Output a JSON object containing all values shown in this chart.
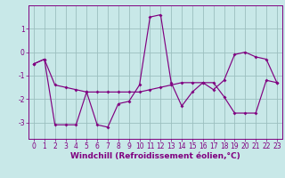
{
  "xlabel": "Windchill (Refroidissement éolien,°C)",
  "x": [
    0,
    1,
    2,
    3,
    4,
    5,
    6,
    7,
    8,
    9,
    10,
    11,
    12,
    13,
    14,
    15,
    16,
    17,
    18,
    19,
    20,
    21,
    22,
    23
  ],
  "line1": [
    -0.5,
    -0.3,
    -1.4,
    -1.5,
    -1.6,
    -1.7,
    -1.7,
    -1.7,
    -1.7,
    -1.7,
    -1.7,
    -1.6,
    -1.5,
    -1.4,
    -1.3,
    -1.3,
    -1.3,
    -1.3,
    -1.9,
    -2.6,
    -2.6,
    -2.6,
    -1.2,
    -1.3
  ],
  "line2": [
    -0.5,
    -0.3,
    -3.1,
    -3.1,
    -3.1,
    -1.7,
    -3.1,
    -3.2,
    -2.2,
    -2.1,
    -1.4,
    1.5,
    1.6,
    -1.3,
    -2.3,
    -1.7,
    -1.3,
    -1.6,
    -1.2,
    -0.1,
    -0.0,
    -0.2,
    -0.3,
    -1.3
  ],
  "line_color": "#800080",
  "bg_color": "#c8e8e8",
  "grid_color": "#9bbfbf",
  "axis_color": "#800080",
  "ylim": [
    -3.7,
    2.0
  ],
  "xlim": [
    -0.5,
    23.5
  ],
  "yticks": [
    -3,
    -2,
    -1,
    0,
    1
  ],
  "xticks": [
    0,
    1,
    2,
    3,
    4,
    5,
    6,
    7,
    8,
    9,
    10,
    11,
    12,
    13,
    14,
    15,
    16,
    17,
    18,
    19,
    20,
    21,
    22,
    23
  ],
  "tick_fontsize": 5.5,
  "xlabel_fontsize": 6.5
}
